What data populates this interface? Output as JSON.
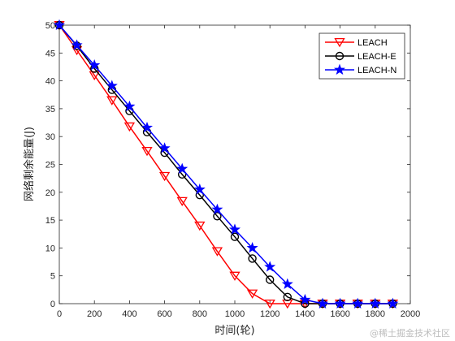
{
  "chart_data": {
    "type": "line",
    "title": "",
    "xlabel": "时间(轮)",
    "ylabel": "网络剩余能量(J)",
    "xlim": [
      0,
      2000
    ],
    "ylim": [
      0,
      50
    ],
    "x_ticks": [
      0,
      200,
      400,
      600,
      800,
      1000,
      1200,
      1400,
      1600,
      1800,
      2000
    ],
    "y_ticks": [
      0,
      5,
      10,
      15,
      20,
      25,
      30,
      35,
      40,
      45,
      50
    ],
    "grid": false,
    "legend_position": "top-right",
    "x": [
      0,
      100,
      200,
      300,
      400,
      500,
      600,
      700,
      800,
      900,
      1000,
      1100,
      1200,
      1300,
      1400,
      1500,
      1600,
      1700,
      1800,
      1900
    ],
    "series": [
      {
        "name": "LEACH",
        "color": "#ff0000",
        "marker": "triangle-down",
        "values": [
          50,
          45.5,
          41,
          36.5,
          31.8,
          27.4,
          22.9,
          18.4,
          14,
          9.4,
          5,
          1.8,
          0,
          0,
          0,
          0,
          0,
          0,
          0,
          0
        ]
      },
      {
        "name": "LEACH-E",
        "color": "#000000",
        "marker": "circle",
        "values": [
          50,
          46.3,
          42.2,
          38.4,
          34.6,
          30.8,
          27.1,
          23.2,
          19.5,
          15.7,
          12,
          8.1,
          4.3,
          1.2,
          0,
          0,
          0,
          0,
          0,
          0
        ]
      },
      {
        "name": "LEACH-N",
        "color": "#0000ff",
        "marker": "star",
        "values": [
          50,
          46.4,
          42.8,
          39.1,
          35.4,
          31.6,
          27.9,
          24.2,
          20.5,
          16.9,
          13.3,
          10,
          6.6,
          3.5,
          0.7,
          0,
          0,
          0,
          0,
          0
        ]
      }
    ]
  },
  "watermark": "@稀土掘金技术社区"
}
